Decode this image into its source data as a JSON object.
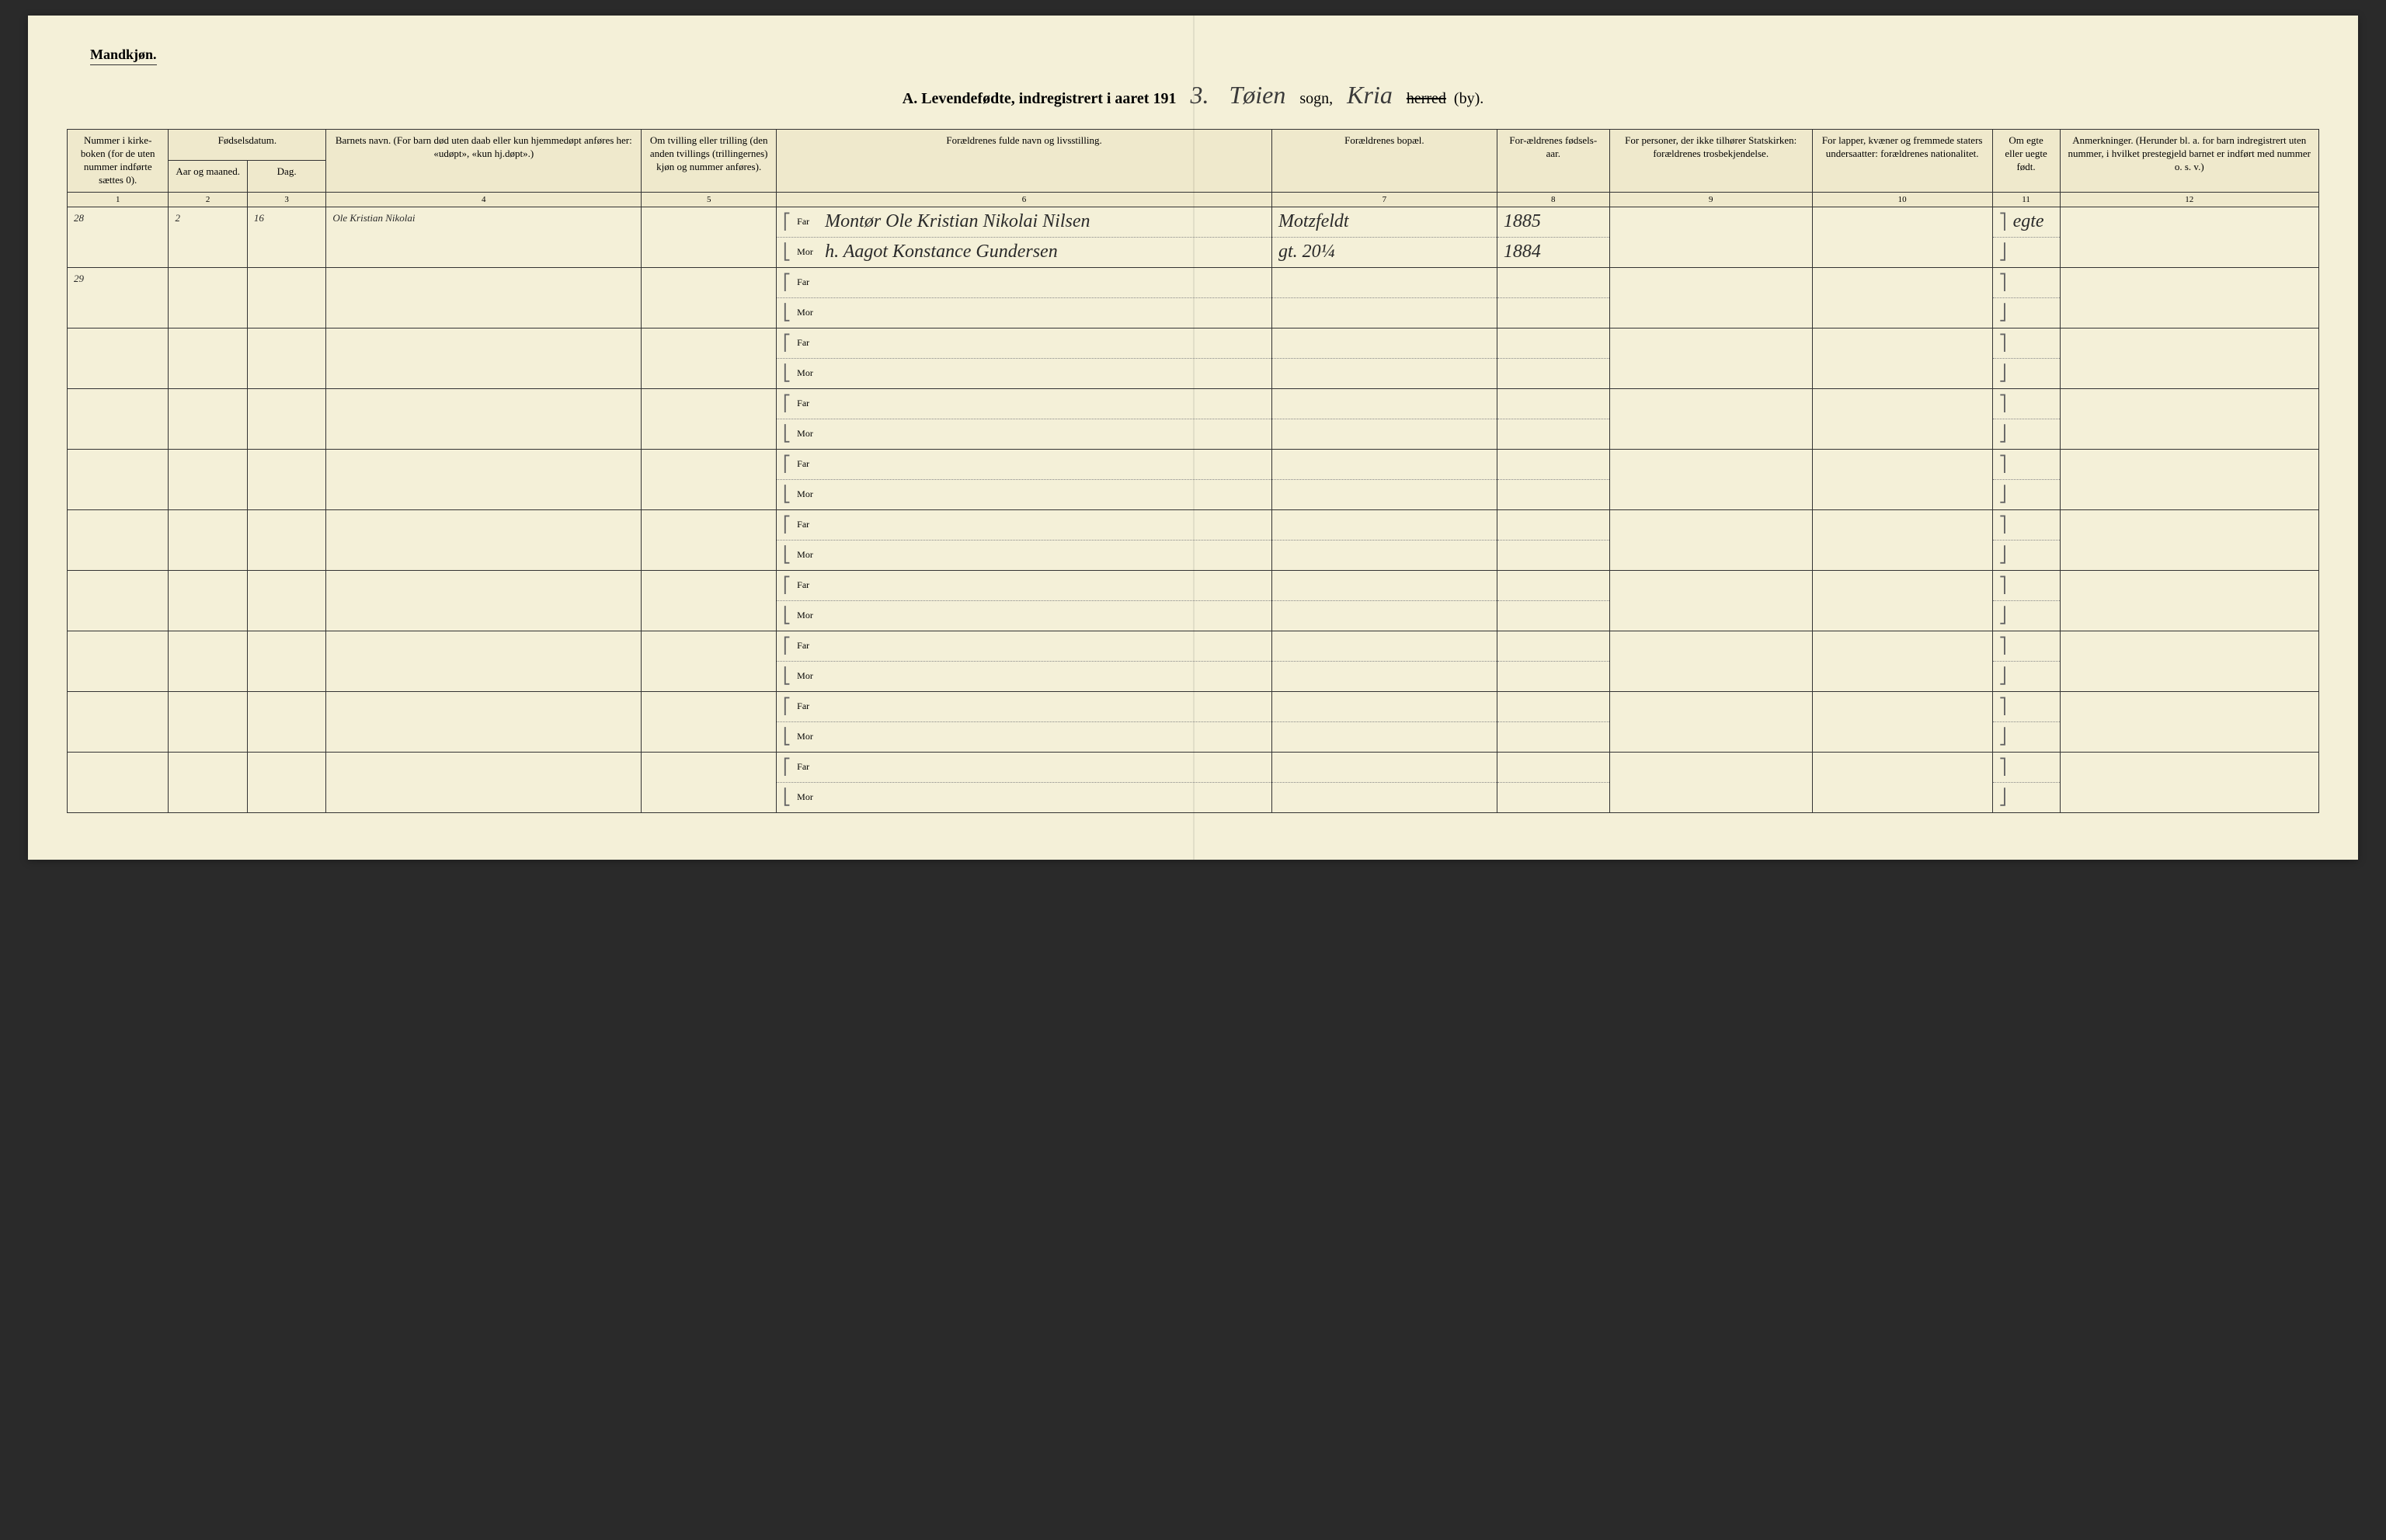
{
  "header": {
    "gender": "Mandkjøn.",
    "title_prefix": "A. Levendefødte, indregistrert i aaret 191",
    "year_suffix": "3.",
    "sogn_handwritten": "Tøien",
    "sogn_label": "sogn,",
    "herred_handwritten": "Kria",
    "herred_label_struck": "herred",
    "by_label": "(by)."
  },
  "columns": {
    "c1": "Nummer i kirke-boken (for de uten nummer indførte sættes 0).",
    "c2_group": "Fødselsdatum.",
    "c2": "Aar og maaned.",
    "c3": "Dag.",
    "c4": "Barnets navn.\n(For barn død uten daab eller kun hjemmedøpt anføres her: «udøpt», «kun hj.døpt».)",
    "c5": "Om tvilling eller trilling (den anden tvillings (trillingernes) kjøn og nummer anføres).",
    "c6": "Forældrenes fulde navn og livsstilling.",
    "c7": "Forældrenes bopæl.",
    "c8": "For-ældrenes fødsels-aar.",
    "c9": "For personer, der ikke tilhører Statskirken: forældrenes trosbekjendelse.",
    "c10": "For lapper, kvæner og fremmede staters undersaatter: forældrenes nationalitet.",
    "c11": "Om egte eller uegte født.",
    "c12": "Anmerkninger.\n(Herunder bl. a. for barn indregistrert uten nummer, i hvilket prestegjeld barnet er indført med nummer o. s. v.)"
  },
  "col_nums": [
    "1",
    "2",
    "3",
    "4",
    "5",
    "6",
    "7",
    "8",
    "9",
    "10",
    "11",
    "12"
  ],
  "parent_labels": {
    "far": "Far",
    "mor": "Mor"
  },
  "rows": [
    {
      "num": "28",
      "month": "2",
      "day": "16",
      "child_name": "Ole Kristian Nikolai",
      "far": "Montør Ole Kristian Nikolai Nilsen",
      "mor": "h. Aagot Konstance Gundersen",
      "bopael": "Motzfeldt",
      "far_year": "1885",
      "mor_bopael": "gt. 20¼",
      "mor_year": "1884",
      "egte": "egte"
    },
    {
      "num": "29"
    },
    {},
    {},
    {},
    {},
    {},
    {},
    {},
    {}
  ],
  "styling": {
    "page_bg": "#f4f0d8",
    "border_color": "#333333",
    "handwriting_color": "#2a2a2a",
    "header_font_size": 20,
    "cell_font_size": 13,
    "handwriting_font_size": 24
  }
}
